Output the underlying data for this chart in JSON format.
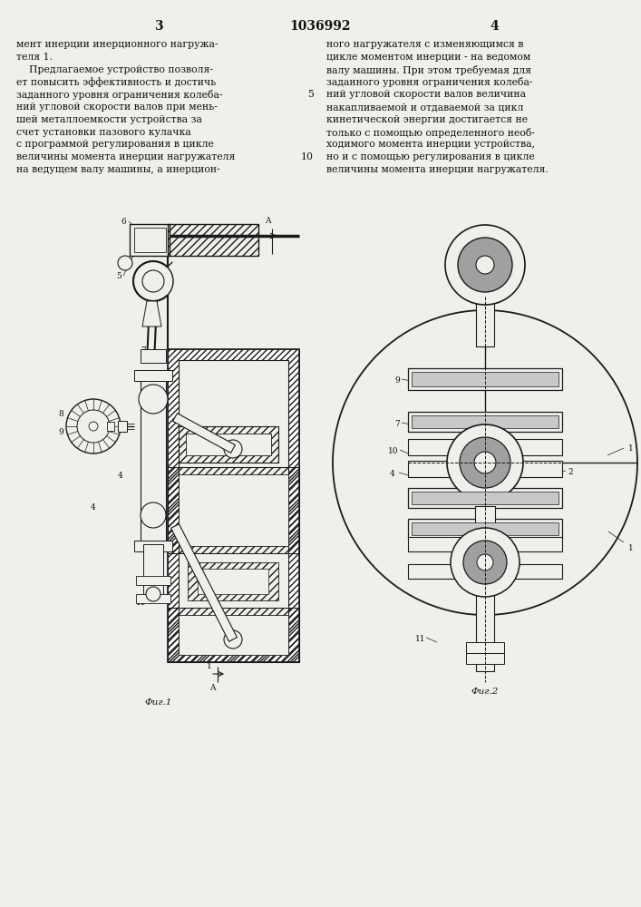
{
  "page_number_left": "3",
  "patent_number": "1036992",
  "page_number_right": "4",
  "col_left_text": [
    "мент инерции инерционного нагружа-",
    "теля 1.",
    "    Предлагаемое устройство позволя-",
    "ет повысить эффективность и достичь",
    "заданного уровня ограничения колеба-",
    "ний угловой скорости валов при мень-",
    "шей металлоемкости устройства за",
    "счет установки пазового кулачка",
    "с программой регулирования в цикле",
    "величины момента инерции нагружателя",
    "на ведущем валу машины, а инерцион-"
  ],
  "col_right_text": [
    "ного нагружателя с изменяющимся в",
    "цикле моментом инерции - на ведомом",
    "валу машины. При этом требуемая для",
    "заданного уровня ограничения колеба-",
    "ний угловой скорости валов величина",
    "накапливаемой и отдаваемой за цикл",
    "кинетической энергии достигается не",
    "только с помощью определенного необ-",
    "ходимого момента инерции устройства,",
    "но и с помощью регулирования в цикле",
    "величины момента инерции нагружателя."
  ],
  "line_number_5": "5",
  "line_number_10": "10",
  "fig1_caption": "Фиг.1",
  "fig2_caption": "Фиг.2",
  "bg_color": "#f0efeb",
  "text_color": "#111111",
  "line_color": "#1a1a1a"
}
